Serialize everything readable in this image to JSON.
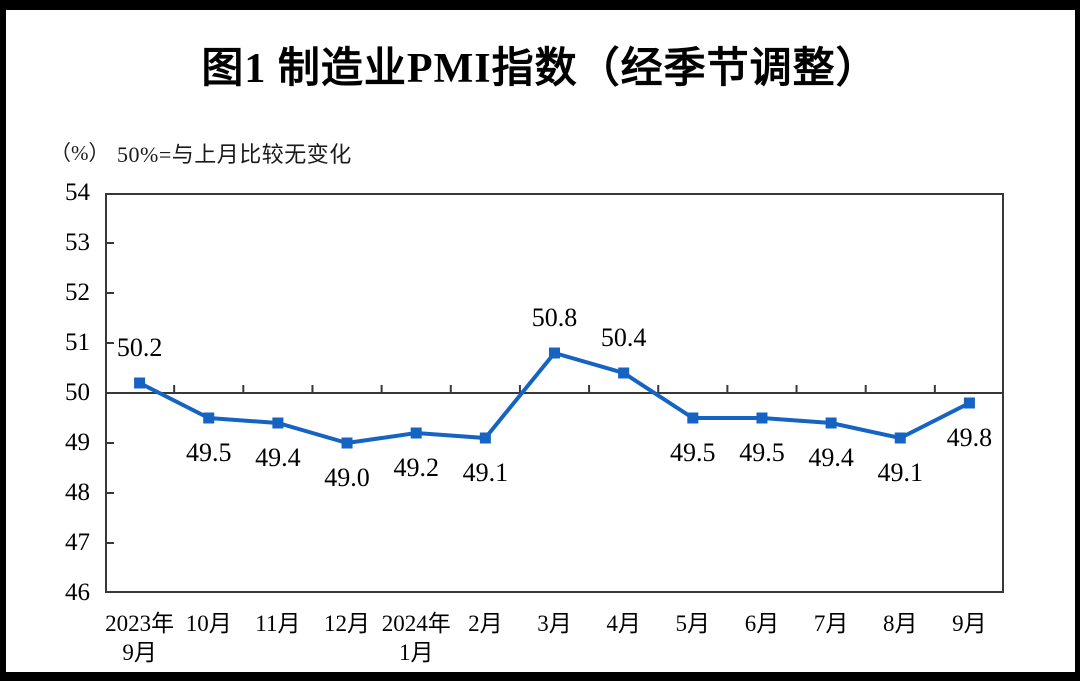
{
  "title": "图1 制造业PMI指数（经季节调整）",
  "axis_note": {
    "unit": "（%）",
    "note": "50%=与上月比较无变化"
  },
  "chart_data": {
    "type": "line",
    "title": "图1 制造业PMI指数（经季节调整）",
    "categories": [
      "2023年|9月",
      "10月",
      "11月",
      "12月",
      "2024年|1月",
      "2月",
      "3月",
      "4月",
      "5月",
      "6月",
      "7月",
      "8月",
      "9月"
    ],
    "values": [
      50.2,
      49.5,
      49.4,
      49.0,
      49.2,
      49.1,
      50.8,
      50.4,
      49.5,
      49.5,
      49.4,
      49.1,
      49.8
    ],
    "data_labels": [
      "50.2",
      "49.5",
      "49.4",
      "49.0",
      "49.2",
      "49.1",
      "50.8",
      "50.4",
      "49.5",
      "49.5",
      "49.4",
      "49.1",
      "49.8"
    ],
    "data_label_side": [
      "above",
      "below",
      "below",
      "below",
      "below",
      "below",
      "above",
      "above",
      "below",
      "below",
      "below",
      "below",
      "below"
    ],
    "ylabel": "（%）",
    "ylim": [
      46,
      54
    ],
    "yticks": [
      46,
      47,
      48,
      49,
      50,
      51,
      52,
      53,
      54
    ],
    "reference_line": {
      "value": 50,
      "meaning": "50%=与上月比较无变化"
    },
    "grid": false,
    "legend": false,
    "marker": "square",
    "line_color": "#1563C2",
    "marker_color": "#1563C2",
    "axis_color": "#383838",
    "label_color": "#000000"
  }
}
